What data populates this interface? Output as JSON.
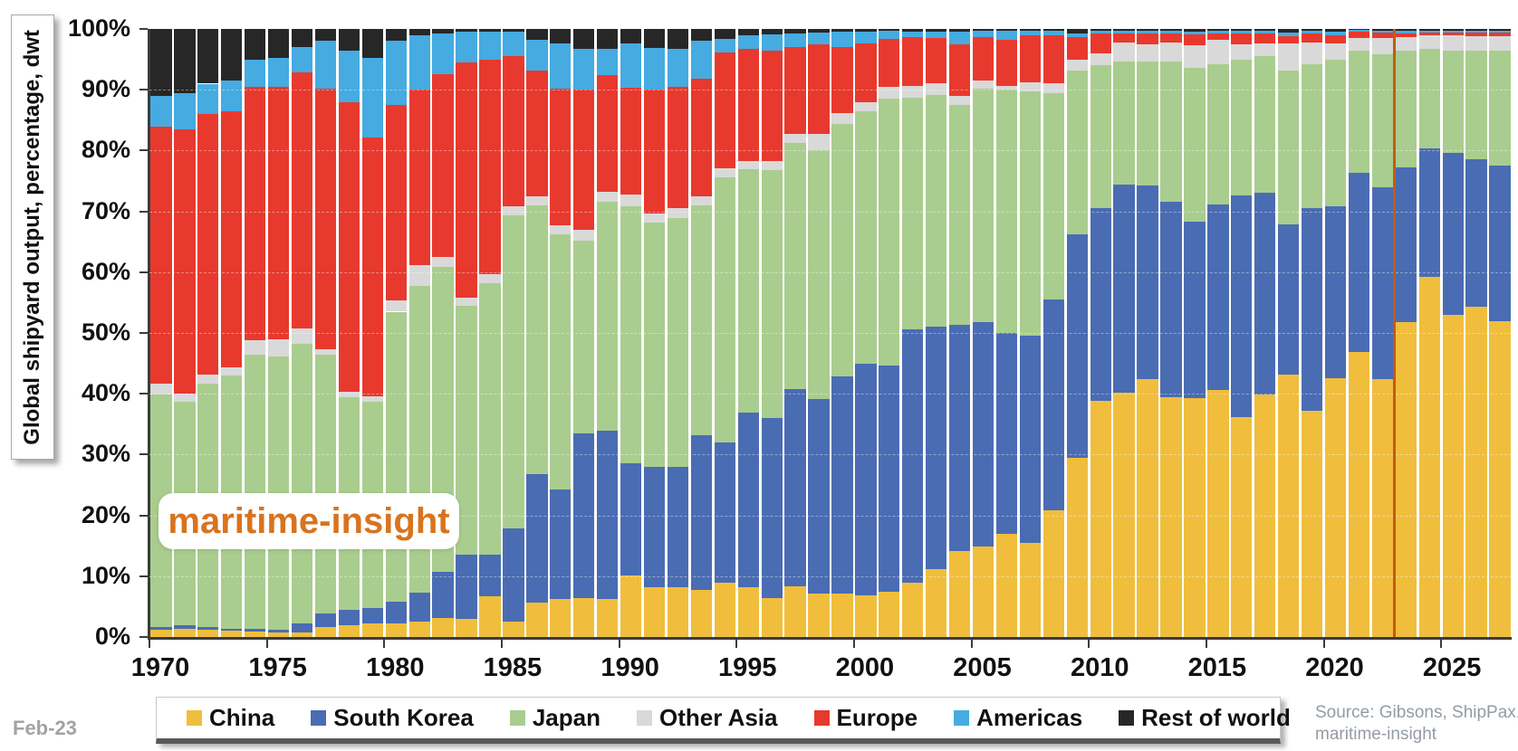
{
  "chart_data": {
    "type": "bar",
    "stacked": true,
    "unit": "percent of world total",
    "watermark": "maritime-insight",
    "ylabel": "Global shipyard output, percentage,  dwt",
    "ylim": [
      0,
      100
    ],
    "grid": "horizontal-dashed",
    "legend_position": "bottom",
    "y_ticks": [
      "100%",
      "90%",
      "80%",
      "70%",
      "60%",
      "50%",
      "40%",
      "30%",
      "20%",
      "10%",
      "0%"
    ],
    "x_ticks": [
      "1970",
      "1975",
      "1980",
      "1985",
      "1990",
      "1995",
      "2000",
      "2005",
      "2010",
      "2015",
      "2020",
      "2025"
    ],
    "years_start": 1970,
    "years_end": 2027,
    "forecast_divider": {
      "after_year": 2022,
      "color": "#C55A11"
    },
    "series": [
      {
        "name": "China",
        "color": "#F0BE3C",
        "values": [
          1.2,
          1.3,
          1.2,
          1.0,
          0.9,
          0.8,
          0.8,
          1.6,
          2.0,
          2.3,
          2.3,
          2.5,
          3.1,
          3.0,
          6.7,
          2.6,
          5.7,
          6.2,
          6.4,
          6.3,
          10.1,
          8.2,
          8.2,
          7.7,
          8.9,
          8.2,
          6.4,
          8.4,
          7.2,
          7.2,
          6.9,
          7.5,
          8.9,
          11.2,
          14.1,
          14.9,
          16.9,
          15.5,
          20.8,
          29.5,
          38.9,
          40.2,
          42.4,
          39.4,
          39.4,
          40.7,
          36.2,
          39.9,
          43.1,
          37.2,
          42.6,
          46.9,
          42.4,
          51.8,
          59.2,
          53.0,
          54.3,
          52.0
        ]
      },
      {
        "name": "South Korea",
        "color": "#4A6CB3",
        "values": [
          0.5,
          0.6,
          0.5,
          0.4,
          0.4,
          0.4,
          1.5,
          2.3,
          2.5,
          2.5,
          3.5,
          4.8,
          7.6,
          10.6,
          6.9,
          15.3,
          21.1,
          18.1,
          27.1,
          27.6,
          18.2,
          19.8,
          19.8,
          25.5,
          23.1,
          28.7,
          29.6,
          32.4,
          31.9,
          35.7,
          38.0,
          37.1,
          41.7,
          39.8,
          37.2,
          36.9,
          33.1,
          34.0,
          34.7,
          36.7,
          31.7,
          34.2,
          31.9,
          32.2,
          29.0,
          30.4,
          36.4,
          33.2,
          24.8,
          33.4,
          28.3,
          29.5,
          31.5,
          25.5,
          21.1,
          26.6,
          24.3,
          25.6
        ]
      },
      {
        "name": "Japan",
        "color": "#A9CD8E",
        "values": [
          38.2,
          36.8,
          39.9,
          41.6,
          45.2,
          45.0,
          45.9,
          42.5,
          34.9,
          33.9,
          47.7,
          50.5,
          50.2,
          40.9,
          44.6,
          51.5,
          44.2,
          41.9,
          31.7,
          37.7,
          41.9,
          40.2,
          40.9,
          37.7,
          43.6,
          40.0,
          40.8,
          40.5,
          41.0,
          41.5,
          41.5,
          43.9,
          38.1,
          38.1,
          36.2,
          38.4,
          40.0,
          40.3,
          34.0,
          27.0,
          23.4,
          20.3,
          20.4,
          23.1,
          25.3,
          23.1,
          22.4,
          22.4,
          25.3,
          23.6,
          24.1,
          20.0,
          22.0,
          19.1,
          16.4,
          16.8,
          17.8,
          18.8
        ]
      },
      {
        "name": "Other Asia",
        "color": "#D9D9D9",
        "values": [
          1.7,
          1.3,
          1.6,
          1.3,
          2.3,
          2.8,
          2.6,
          0.9,
          0.9,
          0.9,
          1.8,
          3.4,
          1.6,
          1.3,
          1.5,
          1.5,
          1.5,
          1.5,
          1.7,
          1.6,
          1.9,
          1.5,
          1.7,
          1.5,
          1.5,
          1.4,
          1.5,
          1.4,
          2.7,
          1.7,
          1.5,
          2.0,
          2.0,
          2.0,
          1.5,
          1.3,
          0.7,
          1.4,
          1.6,
          1.8,
          2.0,
          3.0,
          2.7,
          3.0,
          3.7,
          4.0,
          2.4,
          2.1,
          4.4,
          3.5,
          2.6,
          2.1,
          2.6,
          2.2,
          2.2,
          2.5,
          2.4,
          2.4
        ]
      },
      {
        "name": "Europe",
        "color": "#E8392E",
        "values": [
          42.4,
          43.5,
          42.8,
          42.2,
          41.7,
          41.5,
          42.0,
          42.9,
          47.6,
          42.6,
          32.2,
          28.8,
          30.0,
          38.7,
          35.3,
          24.6,
          20.6,
          22.5,
          23.1,
          19.2,
          17.4,
          20.3,
          19.9,
          19.3,
          19.1,
          18.4,
          18.1,
          14.4,
          14.6,
          10.9,
          9.7,
          7.9,
          8.0,
          7.4,
          8.4,
          7.2,
          7.5,
          7.8,
          7.9,
          3.7,
          3.3,
          1.6,
          1.9,
          1.6,
          1.8,
          1.1,
          1.9,
          1.7,
          1.2,
          1.6,
          1.4,
          1.0,
          0.9,
          0.7,
          0.5,
          0.5,
          0.6,
          0.6
        ]
      },
      {
        "name": "Americas",
        "color": "#45ABE0",
        "values": [
          5.0,
          6.0,
          5.0,
          5.0,
          4.5,
          4.7,
          4.2,
          7.8,
          8.5,
          13.1,
          10.5,
          9.0,
          6.7,
          5.0,
          4.6,
          4.1,
          5.1,
          7.4,
          6.8,
          4.4,
          7.3,
          6.9,
          6.3,
          6.2,
          2.1,
          2.3,
          2.7,
          2.1,
          2.0,
          2.5,
          2.0,
          1.3,
          0.8,
          1.1,
          2.2,
          1.0,
          1.5,
          0.7,
          0.7,
          0.6,
          0.4,
          0.4,
          0.4,
          0.4,
          0.5,
          0.4,
          0.4,
          0.4,
          0.6,
          0.4,
          0.5,
          0.3,
          0.3,
          0.4,
          0.3,
          0.3,
          0.3,
          0.3
        ]
      },
      {
        "name": "Rest of world",
        "color": "#272727",
        "values": [
          11.0,
          10.5,
          9.0,
          8.5,
          5.0,
          4.8,
          3.0,
          2.0,
          3.6,
          4.7,
          2.0,
          1.0,
          0.8,
          0.5,
          0.4,
          0.4,
          1.8,
          2.4,
          3.2,
          3.2,
          2.3,
          3.1,
          3.2,
          2.0,
          1.7,
          1.0,
          0.9,
          0.8,
          0.6,
          0.5,
          0.4,
          0.3,
          0.5,
          0.4,
          0.4,
          0.3,
          0.3,
          0.3,
          0.3,
          0.7,
          0.3,
          0.3,
          0.3,
          0.3,
          0.4,
          0.3,
          0.3,
          0.3,
          0.6,
          0.3,
          0.5,
          0.2,
          0.3,
          0.3,
          0.3,
          0.3,
          0.3,
          0.3
        ]
      }
    ],
    "footnote_left": "Feb-23",
    "source_line1": "Source: Gibsons, ShipPax,",
    "source_line2": "maritime-insight"
  }
}
